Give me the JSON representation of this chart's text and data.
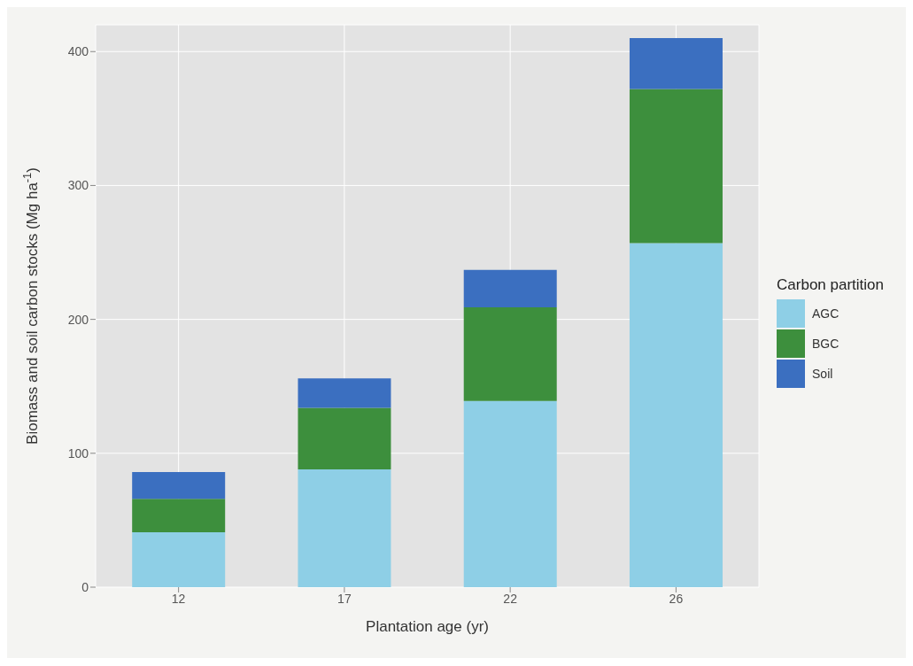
{
  "chart_data": {
    "type": "bar",
    "stacked": true,
    "xlabel": "Plantation age (yr)",
    "ylabel": "Biomass and soil carbon stocks (Mg ha$^{-1}$)",
    "legend_title": "Carbon partition",
    "categories": [
      "12",
      "17",
      "22",
      "26"
    ],
    "series": [
      {
        "name": "AGC",
        "color": "#8ecfe6",
        "values": [
          41,
          88,
          139,
          257
        ]
      },
      {
        "name": "BGC",
        "color": "#3d8f3d",
        "values": [
          25,
          46,
          70,
          115
        ]
      },
      {
        "name": "Soil",
        "color": "#3b6fc0",
        "values": [
          20,
          22,
          28,
          38
        ]
      }
    ],
    "ylim": [
      0,
      420
    ],
    "yticks": [
      0,
      100,
      200,
      300,
      400
    ],
    "grid": true,
    "legend": "right"
  }
}
